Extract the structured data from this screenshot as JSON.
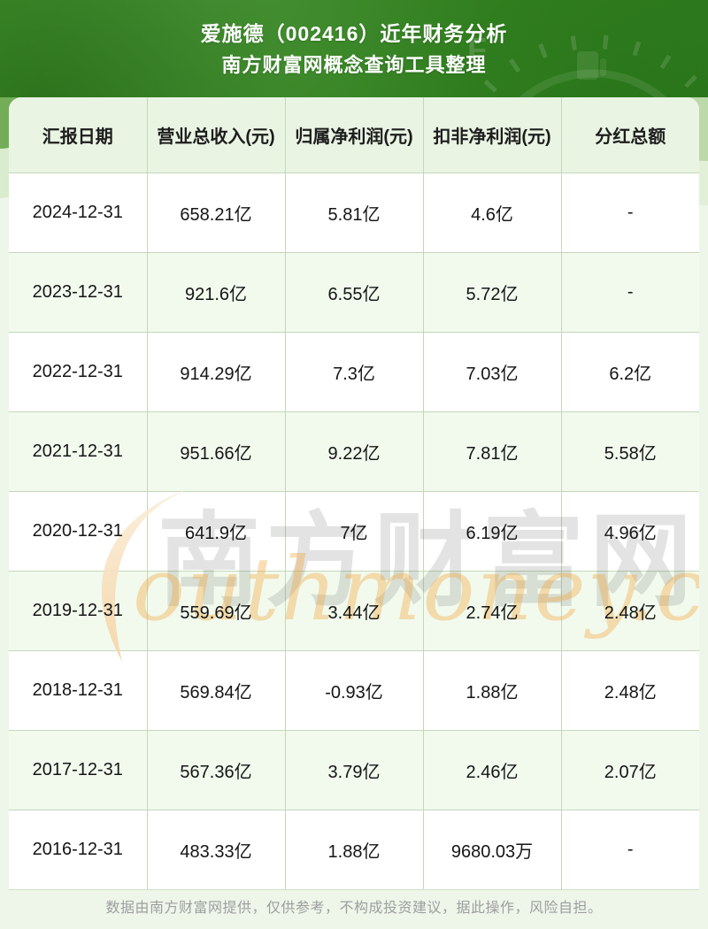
{
  "banner": {
    "title": "爱施德（002416）近年财务分析",
    "subtitle": "南方财富网概念查询工具整理"
  },
  "chart_data": {
    "type": "table",
    "title": "爱施德（002416）近年财务分析",
    "columns": [
      "汇报日期",
      "营业总收入(元)",
      "归属净利润(元)",
      "扣非净利润(元)",
      "分红总额"
    ],
    "rows": [
      [
        "2024-12-31",
        "658.21亿",
        "5.81亿",
        "4.6亿",
        "-"
      ],
      [
        "2023-12-31",
        "921.6亿",
        "6.55亿",
        "5.72亿",
        "-"
      ],
      [
        "2022-12-31",
        "914.29亿",
        "7.3亿",
        "7.03亿",
        "6.2亿"
      ],
      [
        "2021-12-31",
        "951.66亿",
        "9.22亿",
        "7.81亿",
        "5.58亿"
      ],
      [
        "2020-12-31",
        "641.9亿",
        "7亿",
        "6.19亿",
        "4.96亿"
      ],
      [
        "2019-12-31",
        "559.69亿",
        "3.44亿",
        "2.74亿",
        "2.48亿"
      ],
      [
        "2018-12-31",
        "569.84亿",
        "-0.93亿",
        "1.88亿",
        "2.48亿"
      ],
      [
        "2017-12-31",
        "567.36亿",
        "3.79亿",
        "2.46亿",
        "2.07亿"
      ],
      [
        "2016-12-31",
        "483.33亿",
        "1.88亿",
        "9680.03万",
        "-"
      ]
    ]
  },
  "watermark": {
    "cn": "南方财富网",
    "en": "outhmoney.com"
  },
  "footer": {
    "disclaimer": "数据由南方财富网提供，仅供参考，不构成投资建议，据此操作，风险自担。"
  },
  "colors": {
    "banner_green": "#35851f",
    "header_row_bg": "#e9f4e3",
    "row_alt_bg": "#f2faee",
    "grid_border": "#c5d7ba",
    "page_bg": "#edf6e9",
    "watermark_orange": "#f5cf9e"
  }
}
